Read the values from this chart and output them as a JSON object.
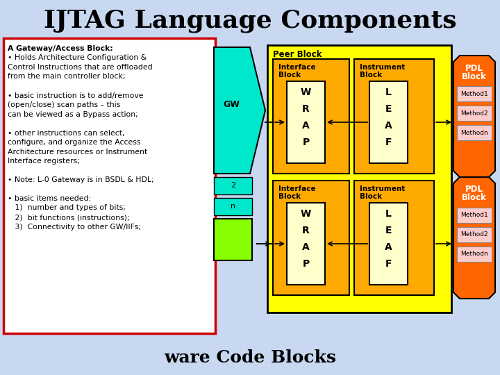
{
  "title": "IJTAG Language Components",
  "title_fontsize": 26,
  "bg_color": "#c8d8f0",
  "left_box_color": "#ffffff",
  "left_box_border": "#cc0000",
  "gw_color": "#00e8cc",
  "peer_block_color": "#ffff00",
  "interface_block_color": "#ffaa00",
  "instrument_block_color": "#ffaa00",
  "wrap_box_color": "#ffffcc",
  "leaf_box_color": "#ffffcc",
  "pdl_block_color": "#ff6600",
  "pdl_method_color": "#ffcccc",
  "green_block_color": "#88ff00",
  "bottom_text": "ware Code Blocks",
  "left_text_lines": [
    "A Gateway/Access Block:",
    "• Holds Architecture Configuration &",
    "Control Instructions that are offloaded",
    "from the main controller block;",
    "",
    "• basic instruction is to add/remove",
    "(open/close) scan paths – this",
    "can be viewed as a Bypass action;",
    "",
    "• other instructions can select,",
    "configure, and organize the Access",
    "Architecture resources or Instrument",
    "Interface registers;",
    "",
    "• Note: L-0 Gateway is in BSDL & HDL;",
    "",
    "• basic items needed:",
    "   1)  number and types of bits;",
    "   2)  bit functions (instructions);",
    "   3)  Connectivity to other GW/IIFs;"
  ]
}
